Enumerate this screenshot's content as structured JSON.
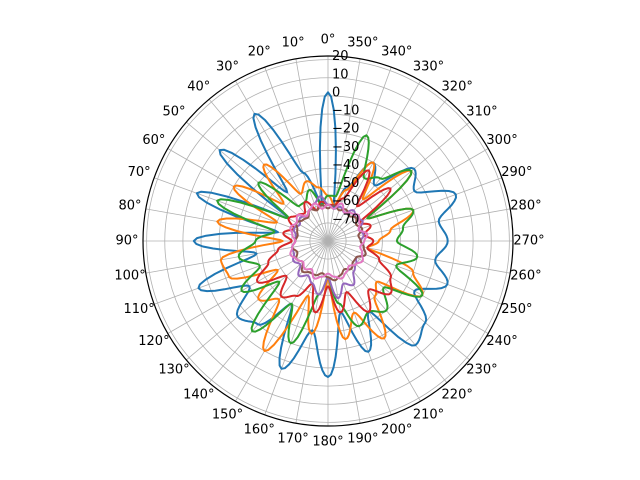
{
  "chart_data": {
    "type": "line",
    "projection": "polar",
    "theta_zero_location": "N",
    "theta_direction": "counterclockwise",
    "title": "",
    "grid": true,
    "legend": "none",
    "angle_tick_labels": [
      "0°",
      "10°",
      "20°",
      "30°",
      "40°",
      "50°",
      "60°",
      "70°",
      "80°",
      "90°",
      "100°",
      "110°",
      "120°",
      "130°",
      "140°",
      "150°",
      "160°",
      "170°",
      "180°",
      "190°",
      "200°",
      "210°",
      "220°",
      "230°",
      "240°",
      "250°",
      "260°",
      "270°",
      "280°",
      "290°",
      "300°",
      "310°",
      "320°",
      "330°",
      "340°",
      "350°"
    ],
    "radial_tick_labels": [
      "−70",
      "−60",
      "−50",
      "−40",
      "−30",
      "−20",
      "−10",
      "0",
      "10",
      "20"
    ],
    "rlim": [
      -80,
      22
    ],
    "series": [
      {
        "color": "#1f77b4",
        "theta": [
          0,
          10,
          20,
          30,
          40,
          50,
          60,
          70,
          80,
          90,
          100,
          110,
          120,
          130,
          140,
          150,
          160,
          170,
          180,
          190,
          200,
          210,
          220,
          230,
          240,
          250,
          260,
          270,
          280,
          290,
          300,
          310,
          320,
          330,
          340,
          350,
          360
        ],
        "r": [
          2,
          -60,
          -40,
          1,
          -45,
          -2,
          -55,
          -3,
          -52,
          -6,
          -40,
          -4,
          -30,
          -15,
          -20,
          -40,
          -5,
          -30,
          -5,
          -40,
          -15,
          -35,
          -5,
          -10,
          -25,
          -10,
          -20,
          -14,
          -18,
          -5,
          -25,
          -18,
          -40,
          -30,
          -48,
          -62,
          2
        ]
      },
      {
        "color": "#ff7f0e",
        "theta": [
          0,
          10,
          20,
          30,
          40,
          50,
          60,
          70,
          80,
          90,
          100,
          110,
          120,
          130,
          140,
          150,
          160,
          170,
          180,
          190,
          200,
          210,
          220,
          230,
          240,
          250,
          260,
          270,
          280,
          290,
          300,
          310,
          320,
          330,
          340,
          350,
          360
        ],
        "r": [
          -55,
          -50,
          -45,
          -50,
          -25,
          -48,
          -20,
          -50,
          -18,
          -55,
          -20,
          -22,
          -48,
          -30,
          -38,
          -10,
          -48,
          -28,
          -60,
          -25,
          -38,
          -18,
          -40,
          -45,
          -20,
          -30,
          -58,
          -52,
          -45,
          -30,
          -55,
          -20,
          -50,
          -30,
          -50,
          -60,
          -55
        ]
      },
      {
        "color": "#2ca02c",
        "theta": [
          0,
          10,
          20,
          30,
          40,
          50,
          60,
          70,
          80,
          90,
          100,
          110,
          120,
          130,
          140,
          150,
          160,
          170,
          180,
          190,
          200,
          210,
          220,
          230,
          240,
          250,
          260,
          270,
          280,
          290,
          300,
          310,
          320,
          330,
          340,
          350,
          360
        ],
        "r": [
          -55,
          -60,
          -50,
          -55,
          -55,
          -30,
          -55,
          -15,
          -50,
          -40,
          -30,
          -40,
          -25,
          -45,
          -15,
          -40,
          -20,
          -50,
          -60,
          -45,
          -30,
          -35,
          -30,
          -40,
          -20,
          -40,
          -30,
          -42,
          -38,
          -30,
          -55,
          -20,
          -35,
          -40,
          -18,
          -55,
          -55
        ]
      },
      {
        "color": "#d62728",
        "theta": [
          0,
          10,
          20,
          30,
          40,
          50,
          60,
          70,
          80,
          90,
          100,
          110,
          120,
          130,
          140,
          150,
          160,
          170,
          180,
          190,
          200,
          210,
          220,
          230,
          240,
          250,
          260,
          270,
          280,
          290,
          300,
          310,
          320,
          330,
          340,
          350,
          360
        ],
        "r": [
          -60,
          -58,
          -62,
          -55,
          -60,
          -58,
          -55,
          -60,
          -55,
          -60,
          -52,
          -45,
          -35,
          -50,
          -40,
          -45,
          -55,
          -40,
          -55,
          -40,
          -50,
          -35,
          -45,
          -35,
          -40,
          -50,
          -58,
          -55,
          -60,
          -55,
          -60,
          -35,
          -55,
          -35,
          -55,
          -60,
          -60
        ]
      },
      {
        "color": "#9467bd",
        "theta": [
          0,
          10,
          20,
          30,
          40,
          50,
          60,
          70,
          80,
          90,
          100,
          110,
          120,
          130,
          140,
          150,
          160,
          170,
          180,
          190,
          200,
          210,
          220,
          230,
          240,
          250,
          260,
          270,
          280,
          290,
          300,
          310,
          320,
          330,
          340,
          350,
          360
        ],
        "r": [
          -60,
          -55,
          -58,
          -60,
          -62,
          -60,
          -62,
          -60,
          -62,
          -62,
          -60,
          -60,
          -58,
          -60,
          -55,
          -58,
          -55,
          -50,
          -60,
          -48,
          -55,
          -52,
          -58,
          -60,
          -62,
          -58,
          -60,
          -62,
          -60,
          -62,
          -58,
          -60,
          -58,
          -62,
          -60,
          -62,
          -60
        ]
      },
      {
        "color": "#8c564b",
        "theta": [
          0,
          10,
          20,
          30,
          40,
          50,
          60,
          70,
          80,
          90,
          100,
          110,
          120,
          130,
          140,
          150,
          160,
          170,
          180,
          190,
          200,
          210,
          220,
          230,
          240,
          250,
          260,
          270,
          280,
          290,
          300,
          310,
          320,
          330,
          340,
          350,
          360
        ],
        "r": [
          -62,
          -60,
          -62,
          -60,
          -63,
          -62,
          -60,
          -62,
          -63,
          -62,
          -60,
          -62,
          -60,
          -62,
          -58,
          -60,
          -60,
          -62,
          -60,
          -58,
          -60,
          -62,
          -60,
          -62,
          -62,
          -58,
          -60,
          -62,
          -63,
          -60,
          -62,
          -60,
          -62,
          -60,
          -62,
          -60,
          -62
        ]
      },
      {
        "color": "#e377c2",
        "theta": [
          0,
          10,
          20,
          30,
          40,
          50,
          60,
          70,
          80,
          90,
          100,
          110,
          120,
          130,
          140,
          150,
          160,
          170,
          180,
          190,
          200,
          210,
          220,
          230,
          240,
          250,
          260,
          270,
          280,
          290,
          300,
          310,
          320,
          330,
          340,
          350,
          360
        ],
        "r": [
          -60,
          -62,
          -58,
          -60,
          -62,
          -58,
          -60,
          -58,
          -60,
          -62,
          -60,
          -58,
          -60,
          -62,
          -60,
          -62,
          -58,
          -60,
          -62,
          -60,
          -58,
          -60,
          -62,
          -60,
          -58,
          -60,
          -62,
          -60,
          -58,
          -62,
          -60,
          -58,
          -60,
          -62,
          -58,
          -62,
          -60
        ]
      }
    ]
  }
}
